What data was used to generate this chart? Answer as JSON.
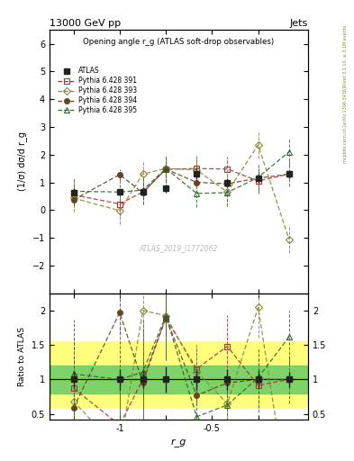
{
  "title": "13000 GeV pp",
  "title_right": "Jets",
  "plot_title": "Opening angle r_g (ATLAS soft-drop observables)",
  "watermark": "ATLAS_2019_I1772062",
  "right_label": "Rivet 3.1.10, ≥ 3.1M events",
  "right_label2": "mcplots.cern.ch [arXiv:1306.3436]",
  "xlabel": "r_g",
  "ylabel": "(1/σ) dσ/d r_g",
  "ylabel_ratio": "Ratio to ATLAS",
  "x_values": [
    -1.25,
    -1.0,
    -0.875,
    -0.75,
    -0.583,
    -0.417,
    -0.25,
    -0.083
  ],
  "atlas_y": [
    0.63,
    0.65,
    0.65,
    0.78,
    1.3,
    1.0,
    1.15,
    1.3
  ],
  "atlas_yerr": [
    0.08,
    0.1,
    0.08,
    0.15,
    0.2,
    0.15,
    0.15,
    0.15
  ],
  "py391_y": [
    0.55,
    0.22,
    0.65,
    1.47,
    1.5,
    1.48,
    1.05,
    1.3
  ],
  "py391_yerr": [
    0.45,
    0.45,
    0.45,
    0.45,
    0.45,
    0.45,
    0.45,
    0.45
  ],
  "py393_y": [
    0.43,
    -0.02,
    1.3,
    1.5,
    1.45,
    0.65,
    2.35,
    -1.05
  ],
  "py393_yerr": [
    0.5,
    0.5,
    0.5,
    0.5,
    0.5,
    0.5,
    0.5,
    0.5
  ],
  "py394_y": [
    0.37,
    1.28,
    0.62,
    1.48,
    1.0,
    0.95,
    1.15,
    1.3
  ],
  "py394_yerr": [
    0.15,
    0.2,
    0.15,
    0.2,
    0.15,
    0.15,
    0.15,
    0.15
  ],
  "py395_y": [
    0.68,
    0.65,
    0.72,
    1.5,
    0.6,
    0.63,
    1.18,
    2.1
  ],
  "py395_yerr": [
    0.5,
    0.5,
    0.5,
    0.5,
    0.5,
    0.5,
    0.5,
    0.5
  ],
  "atlas_color": "#222222",
  "py391_color": "#aa3333",
  "py393_color": "#888833",
  "py394_color": "#664422",
  "py395_color": "#336633",
  "ylim_main": [
    -3.0,
    6.5
  ],
  "ylim_ratio": [
    0.42,
    2.25
  ],
  "xlim": [
    -1.38,
    0.02
  ],
  "yticks_main": [
    -2,
    -1,
    0,
    1,
    2,
    3,
    4,
    5,
    6
  ],
  "yticks_ratio": [
    0.5,
    1.0,
    1.5,
    2.0
  ],
  "xticks": [
    -1.25,
    -1.0,
    -0.75,
    -0.5,
    -0.25
  ],
  "xtick_labels": [
    "",
    "-1",
    "",
    "-0.5",
    ""
  ],
  "green_band_lo": 0.8,
  "green_band_hi": 1.2,
  "yellow_band_lo": 0.6,
  "yellow_band_hi": 1.55
}
